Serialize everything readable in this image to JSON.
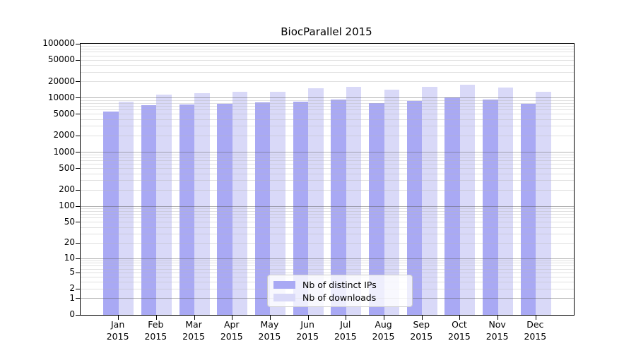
{
  "title": "BiocParallel 2015",
  "legend": {
    "items": [
      {
        "label": "Nb of distinct IPs",
        "color": "#a9a9f4"
      },
      {
        "label": "Nb of downloads",
        "color": "#d9d9f8"
      }
    ]
  },
  "chart_data": {
    "type": "bar",
    "title": "BiocParallel 2015",
    "categories": [
      "Jan",
      "Feb",
      "Mar",
      "Apr",
      "May",
      "Jun",
      "Jul",
      "Aug",
      "Sep",
      "Oct",
      "Nov",
      "Dec"
    ],
    "year_label": "2015",
    "series": [
      {
        "name": "Nb of distinct IPs",
        "color": "#a9a9f4",
        "values": [
          5600,
          7400,
          7500,
          7800,
          8200,
          8600,
          9300,
          8100,
          8800,
          10100,
          9300,
          7900
        ]
      },
      {
        "name": "Nb of downloads",
        "color": "#d9d9f8",
        "values": [
          8600,
          11400,
          12100,
          12900,
          13200,
          15000,
          15900,
          14300,
          16300,
          17800,
          15400,
          13100
        ]
      }
    ],
    "y_ticks": [
      0,
      1,
      2,
      5,
      10,
      20,
      50,
      100,
      200,
      500,
      1000,
      2000,
      5000,
      10000,
      20000,
      50000,
      100000
    ],
    "ylim": [
      0,
      100000
    ],
    "yscale": "log10(1+x)",
    "grid": "horizontal major and minor gridlines",
    "legend_position": "bottom-center inside plot"
  }
}
